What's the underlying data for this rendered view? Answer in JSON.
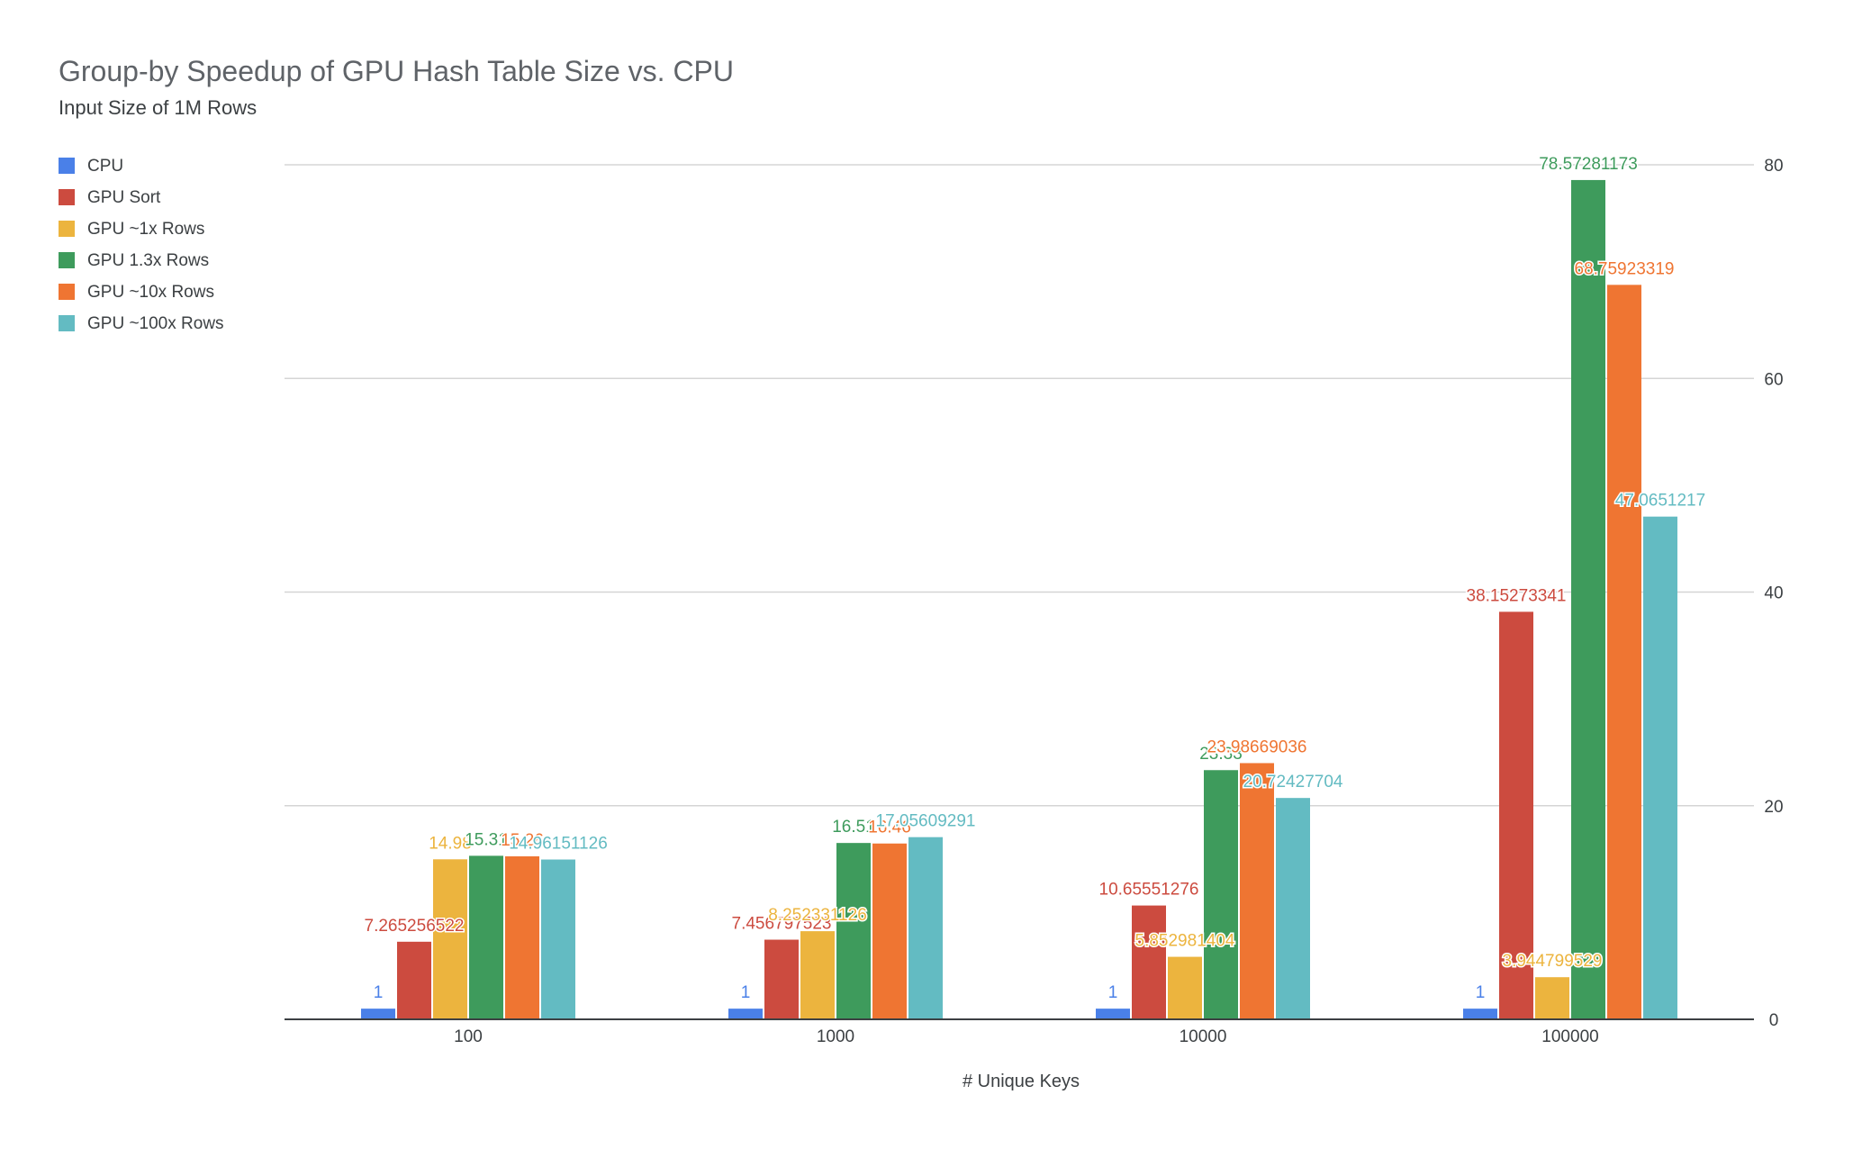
{
  "chart_data": {
    "type": "bar",
    "title": "Group-by Speedup of GPU Hash Table Size vs. CPU",
    "subtitle": "Input Size of 1M Rows",
    "xlabel": "# Unique Keys",
    "ylabel": "",
    "ylim": [
      0,
      80
    ],
    "yticks": [
      "0",
      "20",
      "40",
      "60",
      "80"
    ],
    "y_axis_side": "right",
    "grid": true,
    "legend_position": "left",
    "categories": [
      "100",
      "1000",
      "10000",
      "100000"
    ],
    "series": [
      {
        "name": "CPU",
        "color": "#4a80e8",
        "values": [
          1,
          1,
          1,
          1
        ],
        "labels": [
          "1",
          "1",
          "1",
          "1"
        ]
      },
      {
        "name": "GPU Sort",
        "color": "#cc4b3f",
        "values": [
          7.265256522,
          7.456797523,
          10.65551276,
          38.15273341
        ],
        "labels": [
          "7.265256522",
          "7.456797523",
          "10.65551276",
          "38.15273341"
        ]
      },
      {
        "name": "GPU ~1x Rows",
        "color": "#ecb43e",
        "values": [
          14.98,
          8.252331126,
          5.852981404,
          3.944799529
        ],
        "labels": [
          "14.98",
          "8.252331126",
          "5.852981404",
          "3.944799529"
        ]
      },
      {
        "name": "GPU 1.3x Rows",
        "color": "#3e9b5c",
        "values": [
          15.31,
          16.51,
          23.33,
          78.57281173
        ],
        "labels": [
          "15.31",
          "16.51",
          "23.33",
          "78.57281173"
        ]
      },
      {
        "name": "GPU ~10x Rows",
        "color": "#ef7532",
        "values": [
          15.26,
          16.46,
          23.98669036,
          68.75923319
        ],
        "labels": [
          "15.26",
          "16.46",
          "23.98669036",
          "68.75923319"
        ]
      },
      {
        "name": "GPU ~100x Rows",
        "color": "#63bbc2",
        "values": [
          14.96151126,
          17.05609291,
          20.72427704,
          47.0651217
        ],
        "labels": [
          "14.96151126",
          "17.05609291",
          "20.72427704",
          "47.0651217"
        ]
      }
    ]
  }
}
